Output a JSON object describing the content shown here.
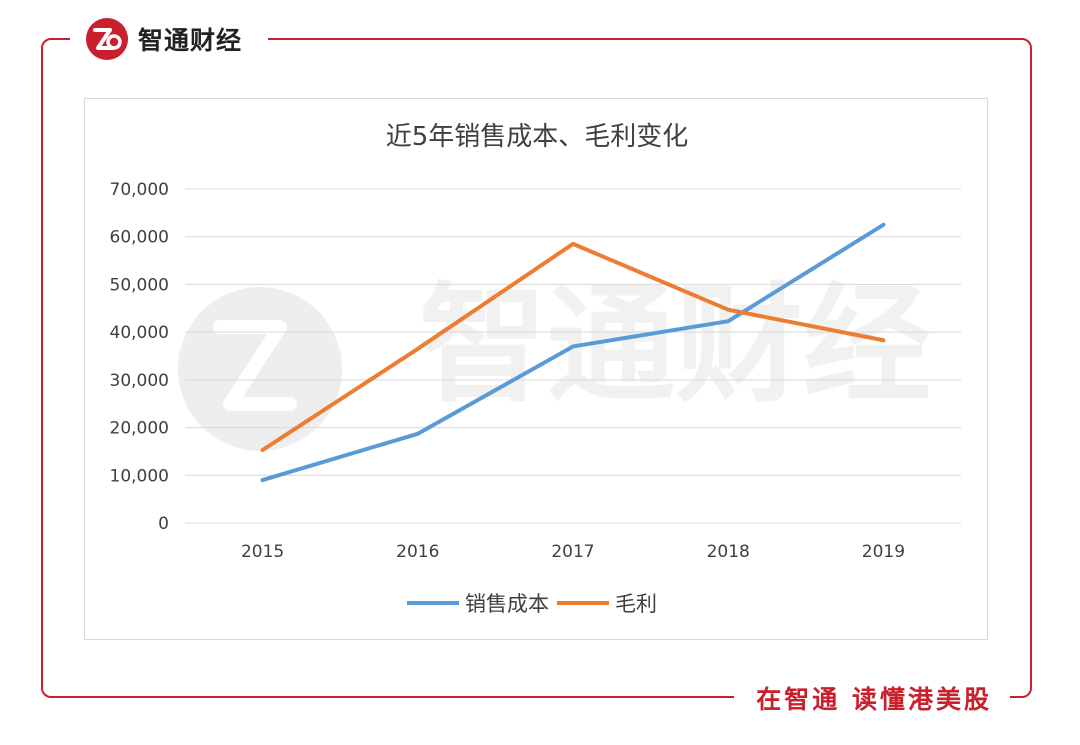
{
  "header": {
    "brand_name": "智通财经",
    "logo_icon": "zhitong-logo-icon",
    "brand_color": "#c8202c"
  },
  "footer": {
    "slogan": "在智通  读懂港美股"
  },
  "watermark": {
    "text": "智通财经"
  },
  "chart_data": {
    "type": "line",
    "title": "近5年销售成本、毛利变化",
    "categories": [
      "2015",
      "2016",
      "2017",
      "2018",
      "2019"
    ],
    "series": [
      {
        "name": "销售成本",
        "color": "#5b9bd5",
        "values": [
          9000,
          18700,
          37000,
          42300,
          62500
        ]
      },
      {
        "name": "毛利",
        "color": "#ed7d31",
        "values": [
          15300,
          36500,
          58500,
          44700,
          38300
        ]
      }
    ],
    "yticks": [
      "0",
      "10,000",
      "20,000",
      "30,000",
      "40,000",
      "50,000",
      "60,000",
      "70,000"
    ],
    "ylim": [
      0,
      70000
    ],
    "grid": true,
    "legend_position": "bottom",
    "xlabel": "",
    "ylabel": ""
  }
}
